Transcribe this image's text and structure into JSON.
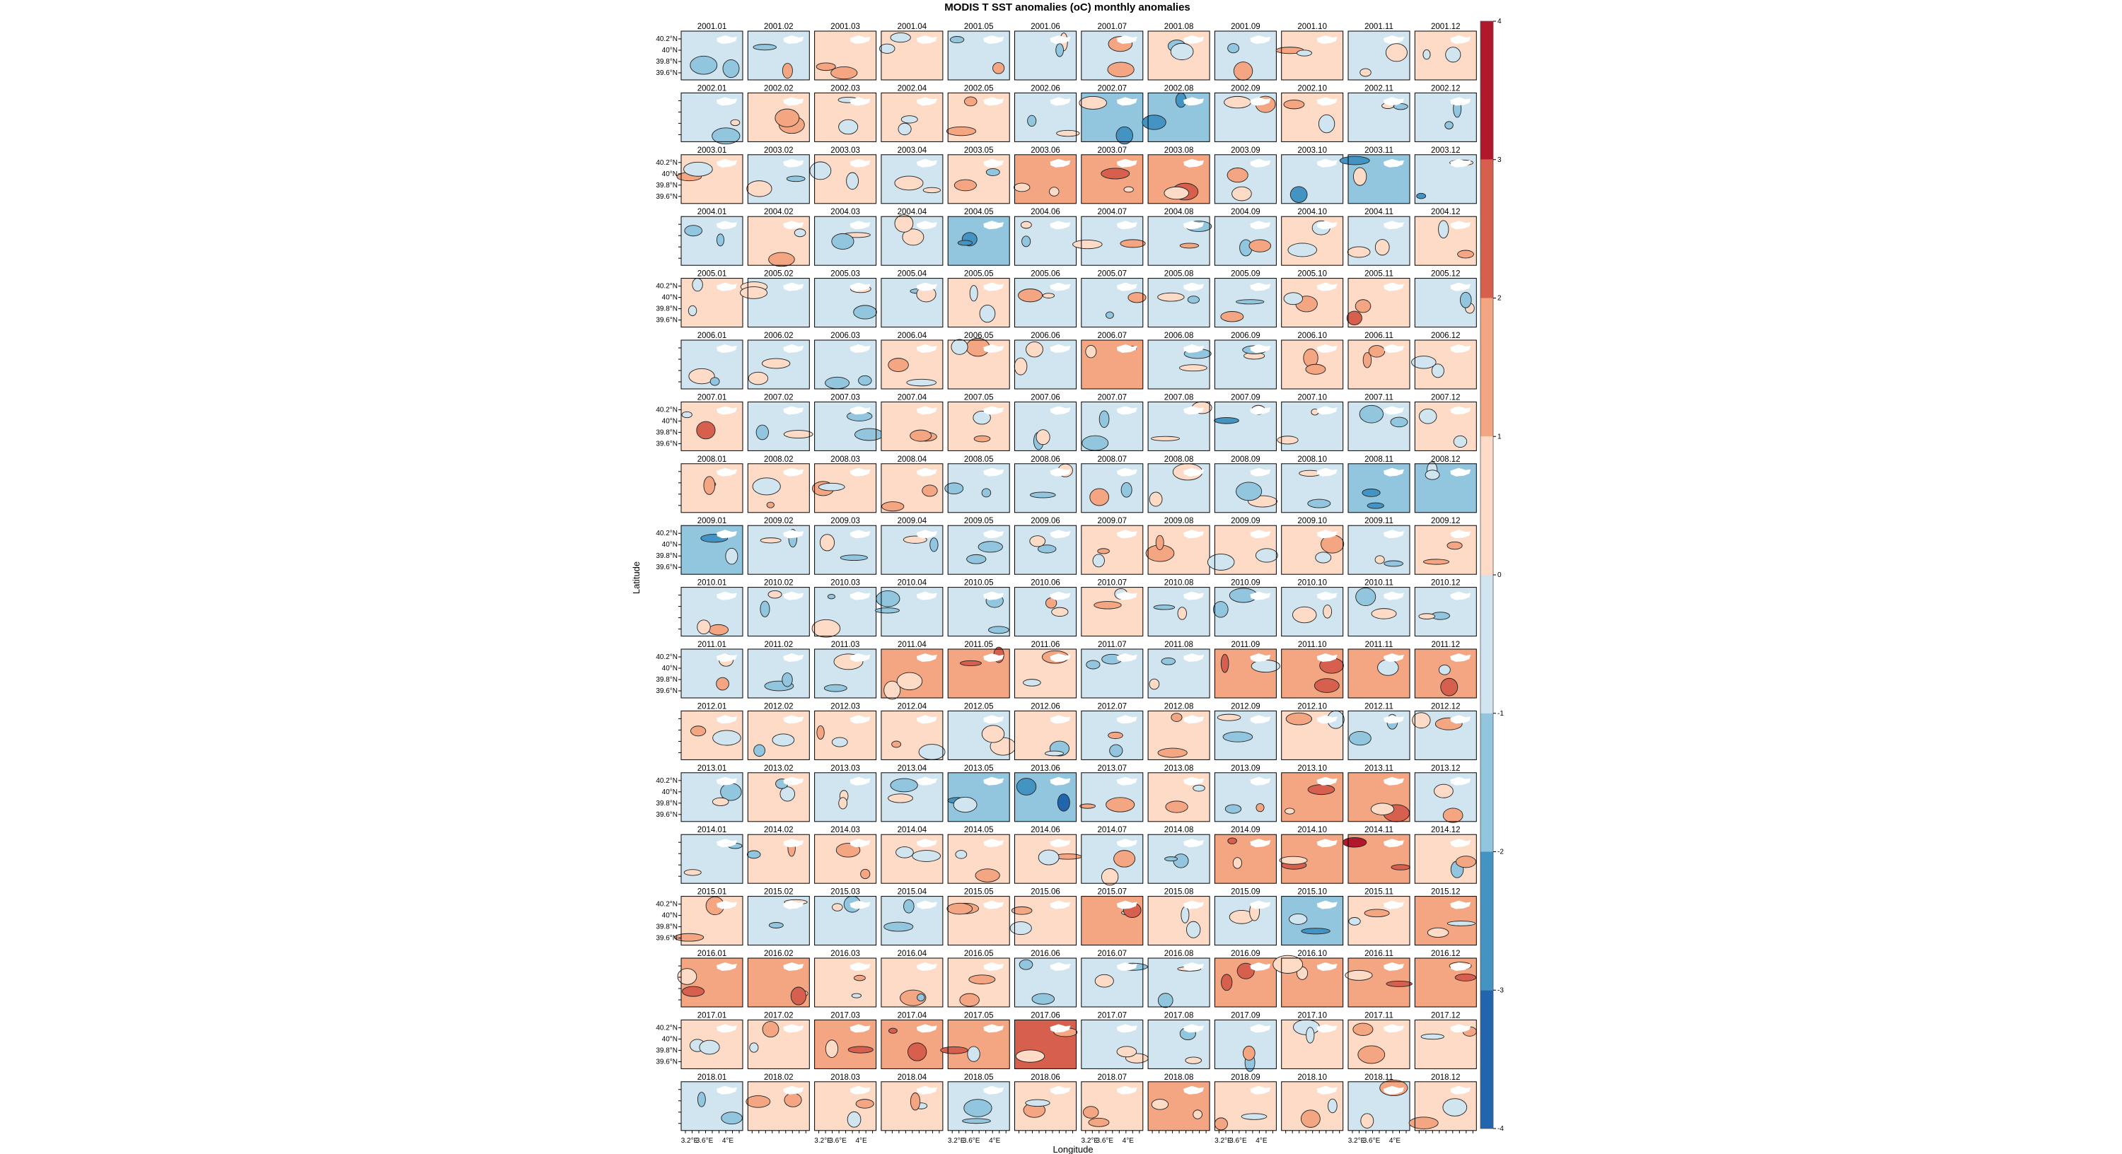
{
  "chart_data": {
    "type": "heatmap",
    "title": "MODIS T SST anomalies (oC) monthly anomalies",
    "xlabel": "Longitude",
    "ylabel": "Latitude",
    "x_tick_labels": [
      "3.2°E",
      "3.6°E",
      "4°E"
    ],
    "y_tick_labels": [
      "40.2°N",
      "40°N",
      "39.8°N",
      "39.6°N"
    ],
    "colorbar": {
      "ticks": [
        "4",
        "3",
        "2",
        "1",
        "0",
        "-1",
        "-2",
        "-3",
        "-4"
      ],
      "range": [
        -4,
        4
      ],
      "colors": [
        "#b2182b",
        "#d6604d",
        "#f4a582",
        "#fddbc7",
        "#d1e5f0",
        "#92c5de",
        "#4393c3",
        "#2166ac"
      ]
    },
    "years": [
      "2001",
      "2002",
      "2003",
      "2004",
      "2005",
      "2006",
      "2007",
      "2008",
      "2009",
      "2010",
      "2011",
      "2012",
      "2013",
      "2014",
      "2015",
      "2016",
      "2017",
      "2018"
    ],
    "months": [
      "01",
      "02",
      "03",
      "04",
      "05",
      "06",
      "07",
      "08",
      "09",
      "10",
      "11",
      "12"
    ],
    "panel_mean_anomaly": [
      [
        -0.3,
        -0.3,
        0.4,
        0.4,
        -0.2,
        -0.4,
        -0.3,
        0.3,
        -0.3,
        0.6,
        -0.5,
        0.3
      ],
      [
        -0.4,
        0.4,
        0.4,
        0.4,
        0.4,
        -0.3,
        -1.2,
        -1.1,
        -0.3,
        0.4,
        -0.3,
        -0.3
      ],
      [
        0.4,
        -0.3,
        0.4,
        -0.3,
        0.3,
        1.3,
        1.5,
        1.6,
        -0.3,
        -0.9,
        -1.3,
        -0.8
      ],
      [
        -0.3,
        0.3,
        -0.4,
        -0.4,
        -1.5,
        -0.3,
        -0.4,
        -0.3,
        -0.3,
        0.4,
        -0.6,
        0.3
      ],
      [
        0.4,
        -0.3,
        -0.3,
        -0.3,
        0.4,
        -0.3,
        -0.3,
        -0.3,
        -0.3,
        0.4,
        0.9,
        -0.6
      ],
      [
        -0.4,
        -0.3,
        -0.3,
        0.4,
        0.4,
        -0.5,
        1.8,
        -0.3,
        -0.3,
        0.4,
        0.4,
        0.9
      ],
      [
        0.9,
        -0.3,
        -0.3,
        0.4,
        0.4,
        -0.3,
        -0.3,
        -0.3,
        -0.6,
        -0.3,
        -0.3,
        0.4
      ],
      [
        0.4,
        0.4,
        0.4,
        0.4,
        -0.3,
        -0.3,
        -0.3,
        -0.3,
        -0.3,
        -0.3,
        -1.2,
        -1.3
      ],
      [
        -1.3,
        -0.3,
        -0.3,
        -0.6,
        -0.3,
        -0.3,
        0.4,
        0.4,
        0.4,
        0.4,
        -0.3,
        0.4
      ],
      [
        -0.3,
        -0.3,
        -0.3,
        -0.3,
        -0.3,
        -0.3,
        0.4,
        -0.3,
        -0.3,
        -0.3,
        -0.3,
        -0.3
      ],
      [
        -0.3,
        -0.3,
        -0.3,
        1.2,
        1.4,
        0.4,
        -0.3,
        -0.3,
        1.2,
        1.3,
        1.4,
        1.2
      ],
      [
        0.4,
        0.4,
        0.4,
        0.4,
        -0.3,
        0.4,
        -0.3,
        0.4,
        -0.3,
        0.4,
        -0.3,
        -0.3
      ],
      [
        -0.3,
        0.4,
        -0.3,
        -0.3,
        -1.3,
        -1.6,
        -0.3,
        0.4,
        -0.3,
        1.3,
        1.6,
        -0.3
      ],
      [
        -0.3,
        0.4,
        0.4,
        0.4,
        0.4,
        0.4,
        -0.3,
        -0.3,
        1.4,
        1.3,
        1.8,
        0.4
      ],
      [
        0.4,
        -0.3,
        -0.3,
        -0.3,
        0.4,
        0.4,
        1.3,
        0.4,
        -0.5,
        -1.3,
        0.4,
        1.2
      ],
      [
        1.3,
        1.3,
        0.4,
        0.4,
        0.4,
        -0.3,
        -0.3,
        -0.3,
        1.2,
        1.2,
        1.4,
        1.3
      ],
      [
        0.4,
        0.4,
        1.3,
        1.3,
        1.3,
        2.3,
        -0.3,
        -0.3,
        -0.3,
        0.4,
        0.4,
        0.4
      ],
      [
        -0.3,
        0.4,
        0.4,
        0.4,
        -0.4,
        0.4,
        0.4,
        1.4,
        0.4,
        0.4,
        -0.3,
        0.4
      ]
    ]
  }
}
